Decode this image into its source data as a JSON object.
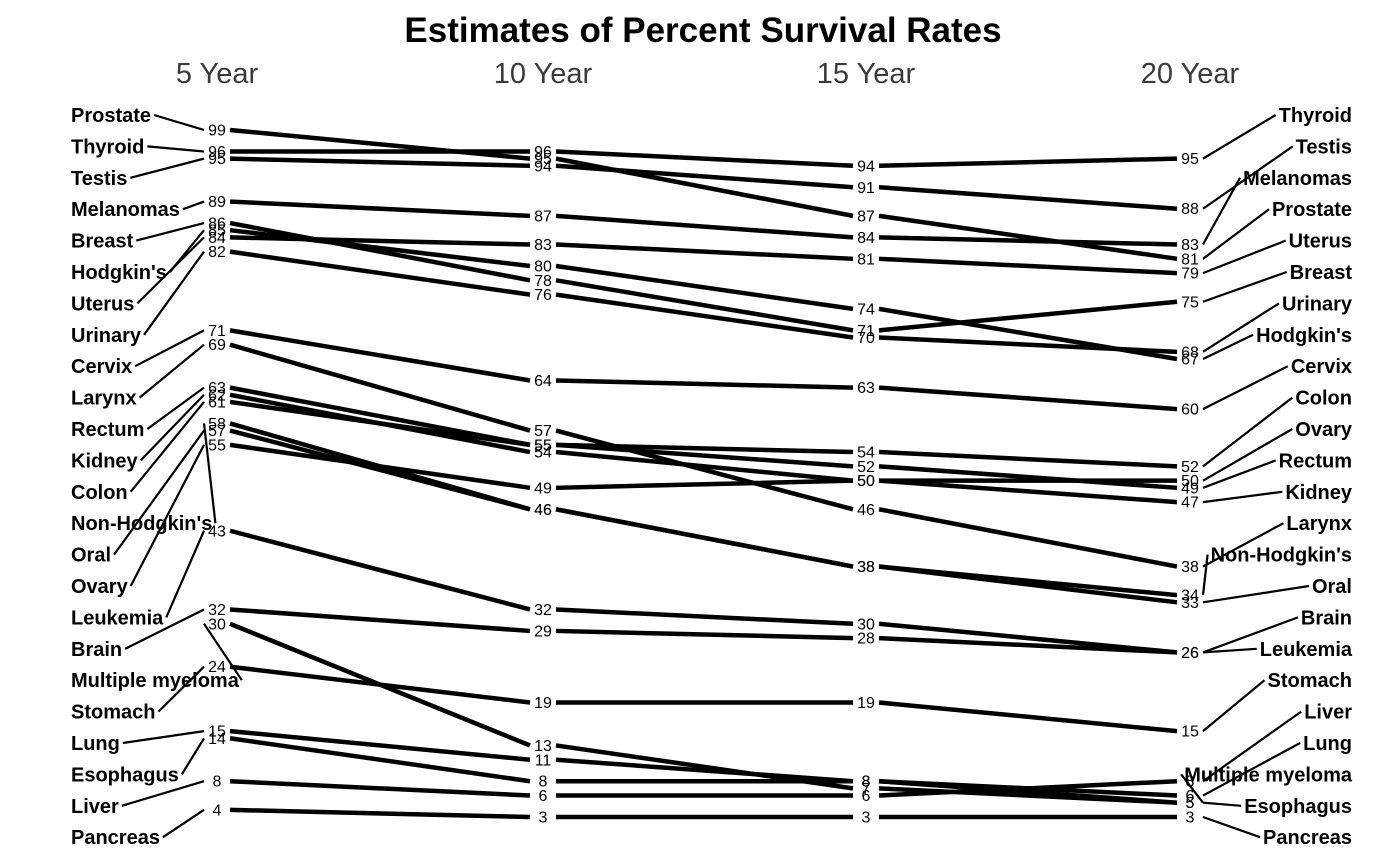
{
  "chart_data": {
    "type": "line",
    "title": "Estimates of Percent Survival Rates",
    "columns": [
      "5 Year",
      "10 Year",
      "15 Year",
      "20 Year"
    ],
    "series": [
      {
        "name": "Thyroid",
        "values": [
          96,
          96,
          94,
          95
        ]
      },
      {
        "name": "Testis",
        "values": [
          95,
          94,
          91,
          88
        ]
      },
      {
        "name": "Melanomas",
        "values": [
          89,
          87,
          84,
          83
        ]
      },
      {
        "name": "Prostate",
        "values": [
          99,
          95,
          87,
          81
        ]
      },
      {
        "name": "Uterus",
        "values": [
          84,
          83,
          81,
          79
        ]
      },
      {
        "name": "Breast",
        "values": [
          86,
          78,
          71,
          75
        ]
      },
      {
        "name": "Urinary",
        "values": [
          82,
          76,
          70,
          68
        ]
      },
      {
        "name": "Hodgkin's",
        "values": [
          85,
          80,
          74,
          67
        ]
      },
      {
        "name": "Cervix",
        "values": [
          71,
          64,
          63,
          60
        ]
      },
      {
        "name": "Colon",
        "values": [
          61,
          55,
          54,
          52
        ]
      },
      {
        "name": "Ovary",
        "values": [
          55,
          49,
          50,
          50
        ]
      },
      {
        "name": "Rectum",
        "values": [
          63,
          55,
          52,
          49
        ]
      },
      {
        "name": "Kidney",
        "values": [
          62,
          54,
          50,
          47
        ]
      },
      {
        "name": "Larynx",
        "values": [
          69,
          57,
          46,
          38
        ]
      },
      {
        "name": "Non-Hodgkin's",
        "values": [
          58,
          46,
          38,
          34
        ]
      },
      {
        "name": "Oral",
        "values": [
          57,
          46,
          38,
          33
        ]
      },
      {
        "name": "Brain",
        "values": [
          32,
          29,
          28,
          26
        ]
      },
      {
        "name": "Leukemia",
        "values": [
          43,
          32,
          30,
          26
        ]
      },
      {
        "name": "Stomach",
        "values": [
          24,
          19,
          19,
          15
        ]
      },
      {
        "name": "Liver",
        "values": [
          8,
          6,
          6,
          8
        ]
      },
      {
        "name": "Lung",
        "values": [
          15,
          11,
          8,
          6
        ]
      },
      {
        "name": "Multiple myeloma",
        "values": [
          30,
          13,
          7,
          5
        ]
      },
      {
        "name": "Esophagus",
        "values": [
          14,
          8,
          8,
          5
        ]
      },
      {
        "name": "Pancreas",
        "values": [
          4,
          3,
          3,
          3
        ]
      }
    ],
    "left_label_order": [
      "Prostate",
      "Thyroid",
      "Testis",
      "Melanomas",
      "Breast",
      "Hodgkin's",
      "Uterus",
      "Urinary",
      "Cervix",
      "Larynx",
      "Rectum",
      "Kidney",
      "Colon",
      "Non-Hodgkin's",
      "Oral",
      "Ovary",
      "Leukemia",
      "Brain",
      "Multiple myeloma",
      "Stomach",
      "Lung",
      "Esophagus",
      "Liver",
      "Pancreas"
    ],
    "right_label_order": [
      "Thyroid",
      "Testis",
      "Melanomas",
      "Prostate",
      "Uterus",
      "Breast",
      "Urinary",
      "Hodgkin's",
      "Cervix",
      "Colon",
      "Ovary",
      "Rectum",
      "Kidney",
      "Larynx",
      "Non-Hodgkin's",
      "Oral",
      "Brain",
      "Leukemia",
      "Stomach",
      "Liver",
      "Lung",
      "Multiple myeloma",
      "Esophagus",
      "Pancreas"
    ],
    "ylim": [
      3,
      99
    ],
    "grid": false,
    "legend": "none"
  }
}
